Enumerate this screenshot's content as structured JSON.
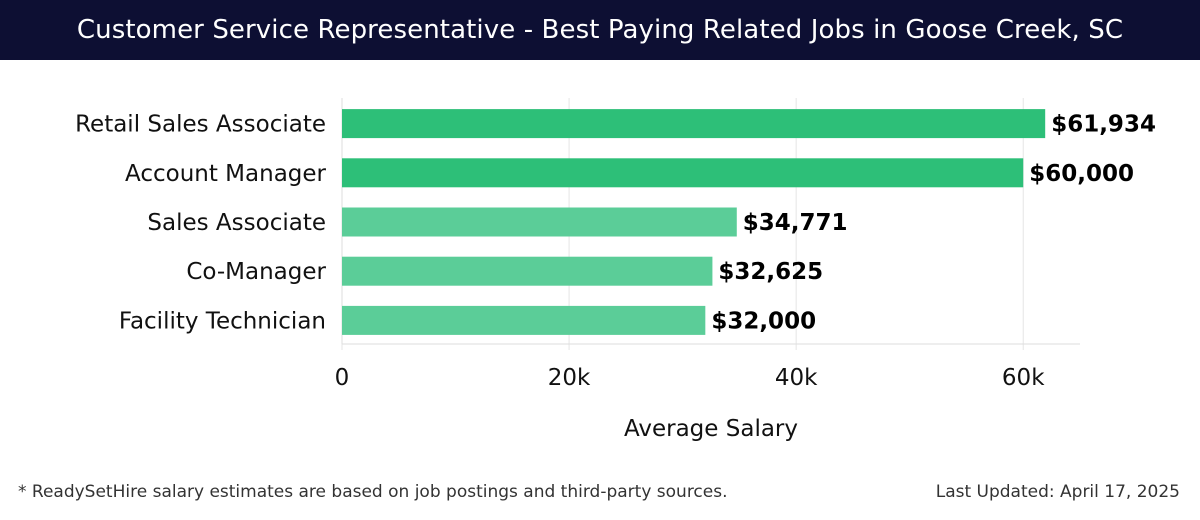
{
  "header": {
    "title": "Customer Service Representative - Best Paying Related Jobs in Goose Creek, SC"
  },
  "chart_data": {
    "type": "bar",
    "orientation": "horizontal",
    "title": "Customer Service Representative - Best Paying Related Jobs in Goose Creek, SC",
    "categories": [
      "Retail Sales Associate",
      "Account Manager",
      "Sales Associate",
      "Co-Manager",
      "Facility Technician"
    ],
    "values": [
      61934,
      60000,
      34771,
      32625,
      32000
    ],
    "value_labels": [
      "$61,934",
      "$60,000",
      "$34,771",
      "$32,625",
      "$32,000"
    ],
    "xlabel": "Average Salary",
    "ylabel": "",
    "xlim": [
      0,
      65000
    ],
    "xticks": [
      0,
      20000,
      40000,
      60000
    ],
    "xtick_labels": [
      "0",
      "20k",
      "40k",
      "60k"
    ],
    "grid": true,
    "colors": {
      "highlight": "#2dbf78",
      "normal": "#5bcd98"
    },
    "highlighted": [
      true,
      true,
      false,
      false,
      false
    ]
  },
  "footer": {
    "note": "* ReadySetHire salary estimates are based on job postings and third-party sources.",
    "updated": "Last Updated: April 17, 2025"
  }
}
